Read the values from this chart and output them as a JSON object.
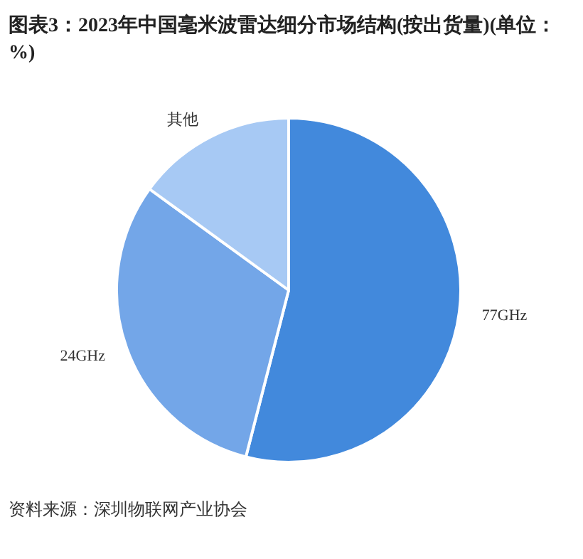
{
  "chart_data": {
    "type": "pie",
    "title": "图表3：2023年中国毫米波雷达细分市场结构(按出货量)(单位：%)",
    "categories": [
      "77GHz",
      "24GHz",
      "其他"
    ],
    "values": [
      54,
      31,
      15
    ],
    "colors": [
      "#4289dc",
      "#73a6e8",
      "#a7c9f4"
    ],
    "annotations": [
      "资料来源：深圳物联网产业协会"
    ]
  }
}
